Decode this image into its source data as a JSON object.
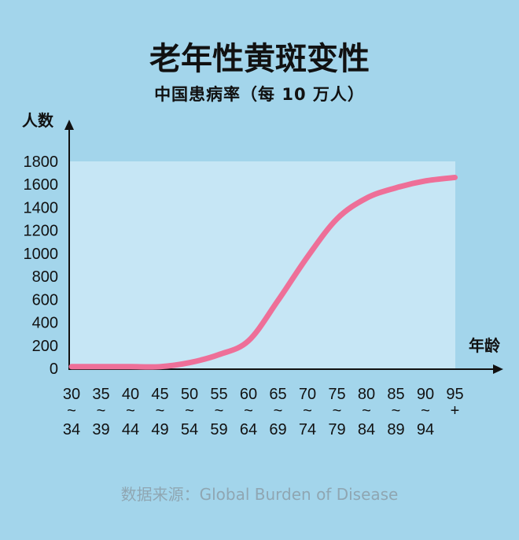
{
  "title": "老年性黄斑变性",
  "subtitle": "中国患病率（每 10 万人）",
  "source": "数据来源：Global Burden of Disease",
  "colors": {
    "background": "#a3d5eb",
    "plot_area": "#c6e6f5",
    "line": "#ee6f98",
    "axis": "#111111"
  },
  "chart_data": {
    "type": "line",
    "ylabel": "人数",
    "xlabel": "年龄",
    "ylim": [
      0,
      1800
    ],
    "yticks": [
      "0",
      "200",
      "400",
      "600",
      "800",
      "1000",
      "1200",
      "1400",
      "1600",
      "1800"
    ],
    "categories": [
      {
        "top": "30",
        "sep": "~",
        "bottom": "34"
      },
      {
        "top": "35",
        "sep": "~",
        "bottom": "39"
      },
      {
        "top": "40",
        "sep": "~",
        "bottom": "44"
      },
      {
        "top": "45",
        "sep": "~",
        "bottom": "49"
      },
      {
        "top": "50",
        "sep": "~",
        "bottom": "54"
      },
      {
        "top": "55",
        "sep": "~",
        "bottom": "59"
      },
      {
        "top": "60",
        "sep": "~",
        "bottom": "64"
      },
      {
        "top": "65",
        "sep": "~",
        "bottom": "69"
      },
      {
        "top": "70",
        "sep": "~",
        "bottom": "74"
      },
      {
        "top": "75",
        "sep": "~",
        "bottom": "79"
      },
      {
        "top": "80",
        "sep": "~",
        "bottom": "84"
      },
      {
        "top": "85",
        "sep": "~",
        "bottom": "89"
      },
      {
        "top": "90",
        "sep": "~",
        "bottom": "94"
      },
      {
        "top": "95",
        "sep": "+",
        "bottom": ""
      }
    ],
    "series": [
      {
        "values": [
          15,
          15,
          15,
          15,
          50,
          120,
          240,
          590,
          970,
          1300,
          1480,
          1570,
          1630,
          1660
        ]
      }
    ],
    "grid": false
  }
}
